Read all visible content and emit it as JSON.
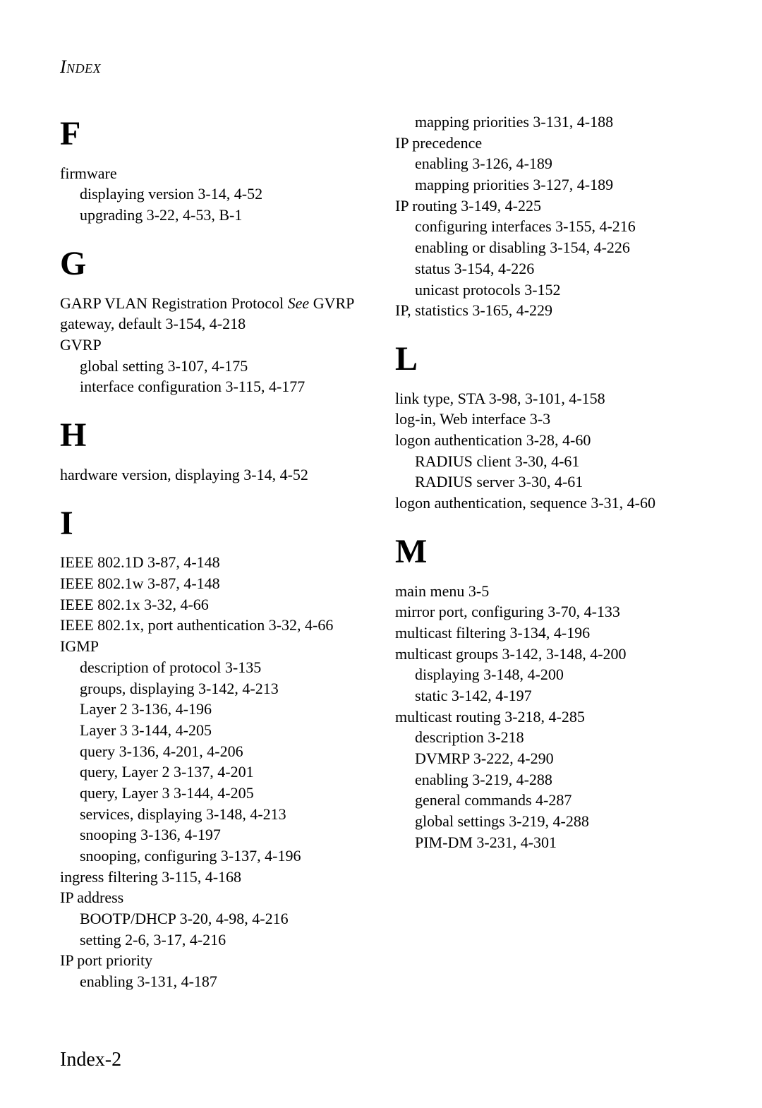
{
  "runningHead": "Index",
  "footer": "Index-2",
  "sections": {
    "F": {
      "letter": "F",
      "entries": {
        "firmware": "firmware",
        "firmware_displaying": "displaying version   3-14,  4-52",
        "firmware_upgrading": "upgrading   3-22,  4-53,  B-1"
      }
    },
    "G": {
      "letter": "G",
      "entries": {
        "garp_text": "GARP VLAN Registration Protocol   ",
        "garp_see": "See",
        "garp_ref": " GVRP",
        "gateway": "gateway, default   3-154,  4-218",
        "gvrp": "GVRP",
        "gvrp_global": "global setting   3-107,  4-175",
        "gvrp_iface": "interface configuration   3-115,  4-177"
      }
    },
    "H": {
      "letter": "H",
      "entries": {
        "hardware": "hardware version, displaying   3-14,  4-52"
      }
    },
    "I": {
      "letter": "I",
      "entries": {
        "ieee1d": "IEEE 802.1D   3-87,  4-148",
        "ieee1w": "IEEE 802.1w   3-87,  4-148",
        "ieee1x": "IEEE 802.1x   3-32,  4-66",
        "ieee1x_port": "IEEE 802.1x, port authentication   3-32,  4-66",
        "igmp": "IGMP",
        "igmp_desc": "description of protocol   3-135",
        "igmp_groups": "groups, displaying   3-142,  4-213",
        "igmp_l2": "Layer 2   3-136,  4-196",
        "igmp_l3": "Layer 3   3-144,  4-205",
        "igmp_query": "query   3-136,  4-201,  4-206",
        "igmp_query_l2": "query, Layer 2   3-137,  4-201",
        "igmp_query_l3": "query, Layer 3   3-144,  4-205",
        "igmp_services": "services, displaying   3-148,  4-213",
        "igmp_snoop": "snooping   3-136,  4-197",
        "igmp_snoop_cfg": "snooping, configuring   3-137,  4-196",
        "ingress": "ingress filtering   3-115,  4-168",
        "ipaddr": "IP address",
        "ipaddr_bootp": "BOOTP/DHCP   3-20,  4-98,  4-216",
        "ipaddr_setting": "setting   2-6,  3-17,  4-216",
        "ipport": "IP port priority",
        "ipport_enable": "enabling   3-131,  4-187",
        "ipport_map": "mapping priorities   3-131,  4-188",
        "ipprec": "IP precedence",
        "ipprec_enable": "enabling   3-126,  4-189",
        "ipprec_map": "mapping priorities   3-127,  4-189",
        "iprouting": "IP routing   3-149,  4-225",
        "iprouting_config": "configuring interfaces   3-155,  4-216",
        "iprouting_enable": "enabling or disabling   3-154,  4-226",
        "iprouting_status": "status   3-154,  4-226",
        "iprouting_unicast": "unicast protocols   3-152",
        "ipstats": "IP, statistics   3-165,  4-229"
      }
    },
    "L": {
      "letter": "L",
      "entries": {
        "linktype": "link type, STA   3-98,  3-101,  4-158",
        "login": "log-in, Web interface   3-3",
        "logonauth": "logon authentication   3-28,  4-60",
        "logon_radius_client": "RADIUS client   3-30,  4-61",
        "logon_radius_server": "RADIUS server   3-30,  4-61",
        "logon_seq": "logon authentication, sequence   3-31,  4-60"
      }
    },
    "M": {
      "letter": "M",
      "entries": {
        "mainmenu": "main menu   3-5",
        "mirror": "mirror port, configuring   3-70,  4-133",
        "mcfilter": "multicast filtering   3-134,  4-196",
        "mcgroups": "multicast groups   3-142,  3-148,  4-200",
        "mcgroups_disp": "displaying   3-148,  4-200",
        "mcgroups_static": "static   3-142,  4-197",
        "mcrouting": "multicast routing   3-218,  4-285",
        "mcrouting_desc": "description   3-218",
        "mcrouting_dvmrp": "DVMRP   3-222,  4-290",
        "mcrouting_enable": "enabling   3-219,  4-288",
        "mcrouting_general": "general commands   4-287",
        "mcrouting_global": "global settings   3-219,  4-288",
        "mcrouting_pimdm": "PIM-DM   3-231,  4-301"
      }
    }
  }
}
